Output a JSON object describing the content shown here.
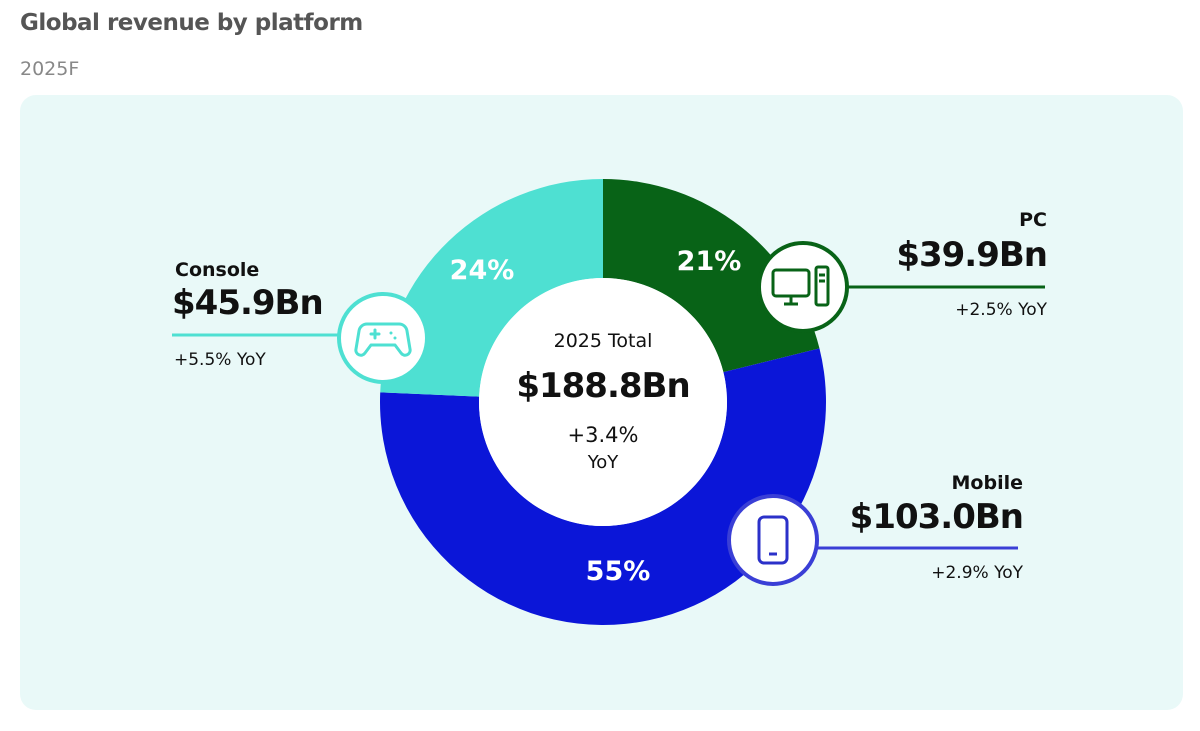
{
  "header": {
    "title": "Global revenue by platform",
    "subtitle": "2025F"
  },
  "center": {
    "label": "2025 Total",
    "value": "$188.8Bn",
    "yoy_line1": "+3.4%",
    "yoy_line2": "YoY"
  },
  "chart_data": {
    "type": "pie",
    "title": "Global revenue by platform",
    "subtitle": "2025F",
    "donut": true,
    "slices": [
      {
        "name": "PC",
        "value": 39.9,
        "label": "$39.9Bn",
        "percent": 21,
        "percent_label": "21%",
        "yoy": "+2.5% YoY",
        "color": "#086317",
        "icon": "desktop-computer-icon"
      },
      {
        "name": "Mobile",
        "value": 103.0,
        "label": "$103.0Bn",
        "percent": 55,
        "percent_label": "55%",
        "yoy": "+2.9% YoY",
        "color": "#0b16d8",
        "icon": "smartphone-icon"
      },
      {
        "name": "Console",
        "value": 45.9,
        "label": "$45.9Bn",
        "percent": 24,
        "percent_label": "24%",
        "yoy": "+5.5% YoY",
        "color": "#4ee0d2",
        "icon": "gamepad-icon"
      }
    ],
    "total": {
      "label": "2025 Total",
      "value": 188.8,
      "value_label": "$188.8Bn",
      "yoy": "+3.4% YoY"
    }
  }
}
